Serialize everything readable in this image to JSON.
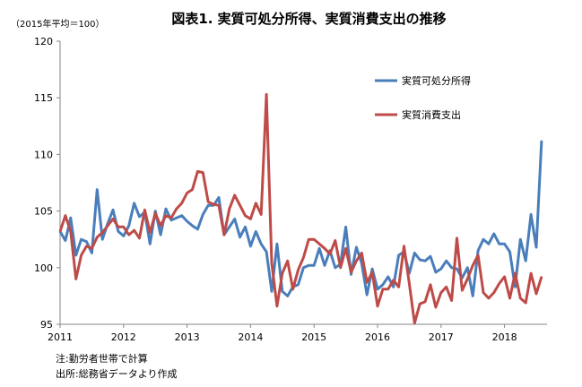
{
  "title": "図表1. 実質可処分所得、実質消費支出の推移",
  "unit_label": "（2015年平均＝100）",
  "notes": [
    "注:勤労者世帯で計算",
    "出所:総務省データより作成"
  ],
  "chart_data": {
    "type": "line",
    "title": "図表1. 実質可処分所得、実質消費支出の推移",
    "xlabel": "",
    "ylabel": "（2015年平均＝100）",
    "x_start": "2011-01",
    "x_frequency": "monthly",
    "x_ticks": [
      "2011",
      "2012",
      "2013",
      "2014",
      "2015",
      "2016",
      "2017",
      "2018"
    ],
    "ylim": [
      95,
      120
    ],
    "y_ticks": [
      95,
      100,
      105,
      110,
      115,
      120
    ],
    "grid": false,
    "legend_position": "right",
    "series": [
      {
        "name": "実質可処分所得",
        "color": "#4a7ebb",
        "values": [
          103.2,
          102.4,
          104.4,
          101.1,
          102.5,
          102.3,
          101.3,
          106.9,
          102.5,
          103.9,
          105.1,
          103.2,
          102.8,
          103.7,
          105.7,
          104.5,
          104.9,
          102.1,
          105.0,
          102.9,
          105.2,
          104.2,
          104.4,
          104.6,
          104.1,
          103.7,
          103.4,
          104.7,
          105.5,
          105.5,
          106.2,
          102.9,
          103.6,
          104.3,
          102.7,
          103.6,
          101.9,
          103.2,
          102.1,
          101.4,
          97.9,
          102.1,
          97.9,
          97.5,
          98.3,
          98.5,
          100.0,
          100.2,
          100.2,
          101.7,
          100.2,
          101.5,
          100.0,
          100.3,
          103.6,
          99.4,
          101.8,
          100.4,
          97.6,
          99.9,
          98.1,
          98.5,
          99.2,
          98.3,
          101.1,
          101.4,
          99.5,
          101.3,
          100.7,
          100.6,
          101.0,
          99.6,
          99.9,
          100.6,
          100.0,
          99.9,
          99.1,
          100.0,
          97.5,
          101.5,
          102.5,
          102.1,
          103.0,
          102.1,
          102.1,
          101.4,
          98.3,
          102.5,
          100.6,
          104.7,
          101.8,
          111.2
        ]
      },
      {
        "name": "実質消費支出",
        "color": "#be4b48",
        "values": [
          103.2,
          104.6,
          103.2,
          99.0,
          101.1,
          101.9,
          101.7,
          102.7,
          103.1,
          103.7,
          104.3,
          103.6,
          103.6,
          102.9,
          103.3,
          102.6,
          105.1,
          103.1,
          104.8,
          103.7,
          104.6,
          104.4,
          105.2,
          105.7,
          106.6,
          106.9,
          108.5,
          108.4,
          105.8,
          105.6,
          105.5,
          102.9,
          105.2,
          106.4,
          105.5,
          104.6,
          104.3,
          105.7,
          104.7,
          115.3,
          100.4,
          96.6,
          99.5,
          100.6,
          98.1,
          99.8,
          100.9,
          102.5,
          102.5,
          102.1,
          101.7,
          101.2,
          102.4,
          100.0,
          101.7,
          99.6,
          100.6,
          101.3,
          98.7,
          99.6,
          96.6,
          98.1,
          98.1,
          98.9,
          98.3,
          101.9,
          98.6,
          95.1,
          96.8,
          97.0,
          98.5,
          96.5,
          97.8,
          98.3,
          97.1,
          102.6,
          98.0,
          99.0,
          100.2,
          101.1,
          97.8,
          97.3,
          97.8,
          98.6,
          99.2,
          97.3,
          99.5,
          97.3,
          96.9,
          99.5,
          97.7,
          99.2
        ]
      }
    ]
  }
}
